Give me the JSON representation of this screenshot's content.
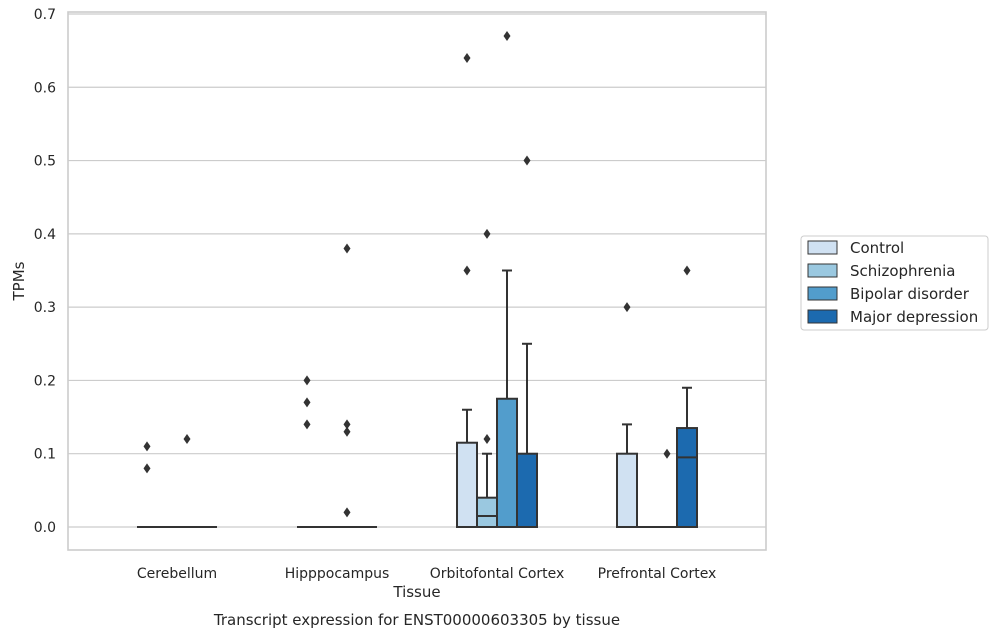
{
  "chart_data": {
    "type": "box",
    "title": "",
    "caption": "Transcript expression for ENST00000603305 by tissue",
    "xlabel": "Tissue",
    "ylabel": "TPMs",
    "ylim": [
      -0.03,
      0.705
    ],
    "yticks": [
      0.0,
      0.1,
      0.2,
      0.3,
      0.4,
      0.5,
      0.6,
      0.7
    ],
    "ytick_labels": [
      "0.0",
      "0.1",
      "0.2",
      "0.3",
      "0.4",
      "0.5",
      "0.6",
      "0.7"
    ],
    "grid": "horizontal",
    "legend_position": "right",
    "categories": [
      "Cerebellum",
      "Hipppocampus",
      "Orbitofontal Cortex",
      "Prefrontal Cortex"
    ],
    "series": [
      {
        "name": "Control",
        "color": "#d0e1f2",
        "boxes": [
          {
            "q1": 0,
            "median": 0,
            "q3": 0,
            "whisker_low": 0,
            "whisker_high": 0,
            "outliers": [
              0.11,
              0.08
            ]
          },
          {
            "q1": 0,
            "median": 0,
            "q3": 0,
            "whisker_low": 0,
            "whisker_high": 0,
            "outliers": [
              0.2,
              0.17,
              0.14
            ]
          },
          {
            "q1": 0,
            "median": 0,
            "q3": 0.115,
            "whisker_low": 0,
            "whisker_high": 0.16,
            "outliers": [
              0.64,
              0.35
            ]
          },
          {
            "q1": 0,
            "median": 0,
            "q3": 0.1,
            "whisker_low": 0,
            "whisker_high": 0.14,
            "outliers": [
              0.3
            ]
          }
        ]
      },
      {
        "name": "Schizophrenia",
        "color": "#9ac8e0",
        "boxes": [
          {
            "q1": 0,
            "median": 0,
            "q3": 0,
            "whisker_low": 0,
            "whisker_high": 0,
            "outliers": []
          },
          {
            "q1": 0,
            "median": 0,
            "q3": 0,
            "whisker_low": 0,
            "whisker_high": 0,
            "outliers": []
          },
          {
            "q1": 0,
            "median": 0.015,
            "q3": 0.04,
            "whisker_low": 0,
            "whisker_high": 0.1,
            "outliers": [
              0.4,
              0.12
            ]
          },
          {
            "q1": 0,
            "median": 0,
            "q3": 0,
            "whisker_low": 0,
            "whisker_high": 0,
            "outliers": []
          }
        ]
      },
      {
        "name": "Bipolar disorder",
        "color": "#529dcc",
        "boxes": [
          {
            "q1": 0,
            "median": 0,
            "q3": 0,
            "whisker_low": 0,
            "whisker_high": 0,
            "outliers": [
              0.12
            ]
          },
          {
            "q1": 0,
            "median": 0,
            "q3": 0,
            "whisker_low": 0,
            "whisker_high": 0,
            "outliers": [
              0.38,
              0.14,
              0.13,
              0.02
            ]
          },
          {
            "q1": 0,
            "median": 0,
            "q3": 0.175,
            "whisker_low": 0,
            "whisker_high": 0.35,
            "outliers": [
              0.67
            ]
          },
          {
            "q1": 0,
            "median": 0,
            "q3": 0,
            "whisker_low": 0,
            "whisker_high": 0,
            "outliers": [
              0.1
            ]
          }
        ]
      },
      {
        "name": "Major depression",
        "color": "#1c6aaf",
        "boxes": [
          {
            "q1": 0,
            "median": 0,
            "q3": 0,
            "whisker_low": 0,
            "whisker_high": 0,
            "outliers": []
          },
          {
            "q1": 0,
            "median": 0,
            "q3": 0,
            "whisker_low": 0,
            "whisker_high": 0,
            "outliers": []
          },
          {
            "q1": 0,
            "median": 0,
            "q3": 0.1,
            "whisker_low": 0,
            "whisker_high": 0.25,
            "outliers": [
              0.5
            ]
          },
          {
            "q1": 0,
            "median": 0.095,
            "q3": 0.135,
            "whisker_low": 0,
            "whisker_high": 0.19,
            "outliers": [
              0.35
            ]
          }
        ]
      }
    ]
  }
}
